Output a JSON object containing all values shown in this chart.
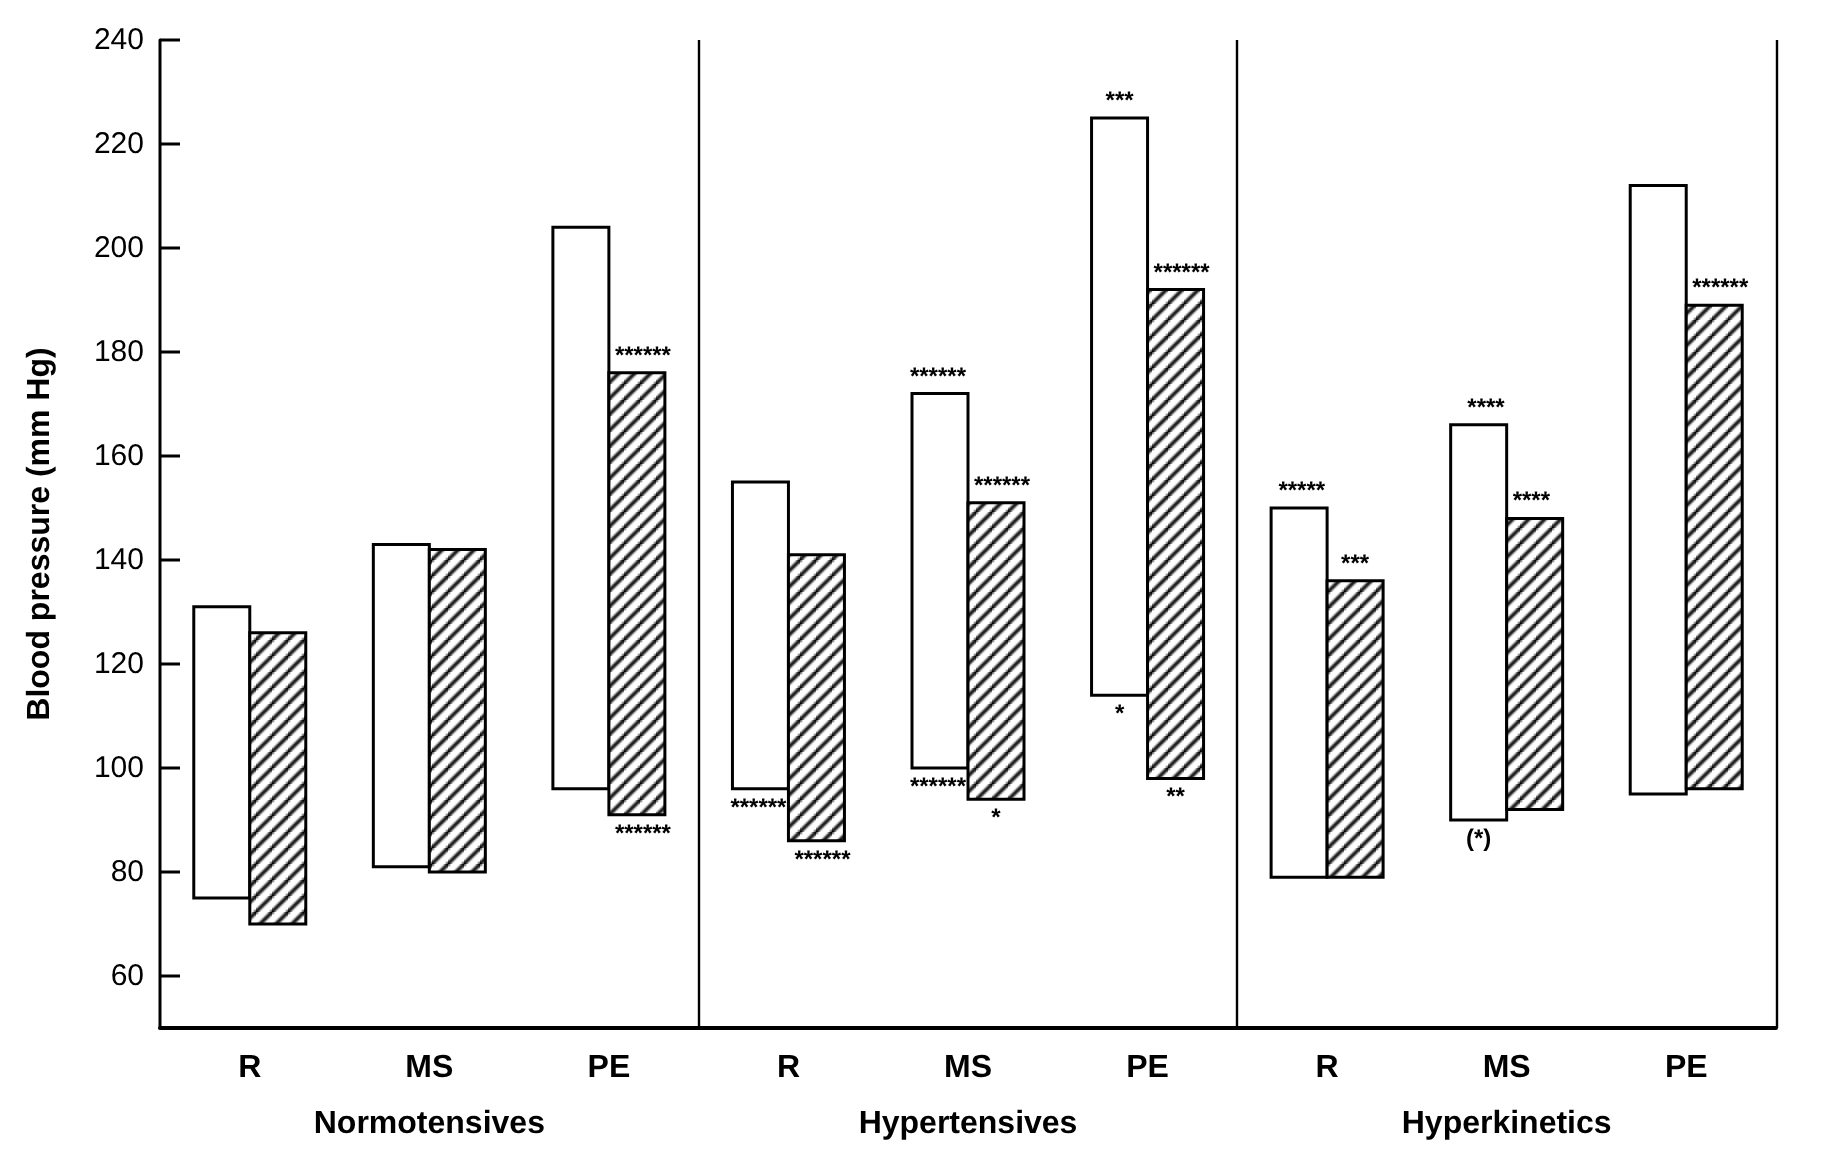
{
  "chart_data": {
    "type": "bar",
    "ylabel": "Blood pressure (mm Hg)",
    "categories": [
      "R",
      "MS",
      "PE",
      "R",
      "MS",
      "PE",
      "R",
      "MS",
      "PE"
    ],
    "series": [
      {
        "color": "#ffffff",
        "base": [
          75,
          81,
          96,
          96,
          100,
          114,
          79,
          90,
          95
        ],
        "values": [
          56,
          62,
          108,
          59,
          72,
          111,
          71,
          76,
          117
        ]
      },
      {
        "color": "#000000",
        "base": [
          70,
          80,
          91,
          86,
          94,
          98,
          79,
          92,
          96
        ],
        "values": [
          56,
          62,
          85,
          55,
          57,
          94,
          57,
          56,
          93
        ]
      }
    ],
    "ylim": [
      50,
      240
    ],
    "yticks": [
      60,
      80,
      100,
      120,
      140,
      160,
      180,
      200,
      220,
      240
    ],
    "annotations": [
      "Normotensives",
      "Hypertensives",
      "Hyperkinetics",
      "******",
      "******",
      "******",
      "******",
      "******",
      "******",
      "******",
      "*",
      "***",
      "******",
      "*",
      "**",
      "*****",
      "***",
      "****",
      "****",
      "(*)",
      "******"
    ]
  }
}
